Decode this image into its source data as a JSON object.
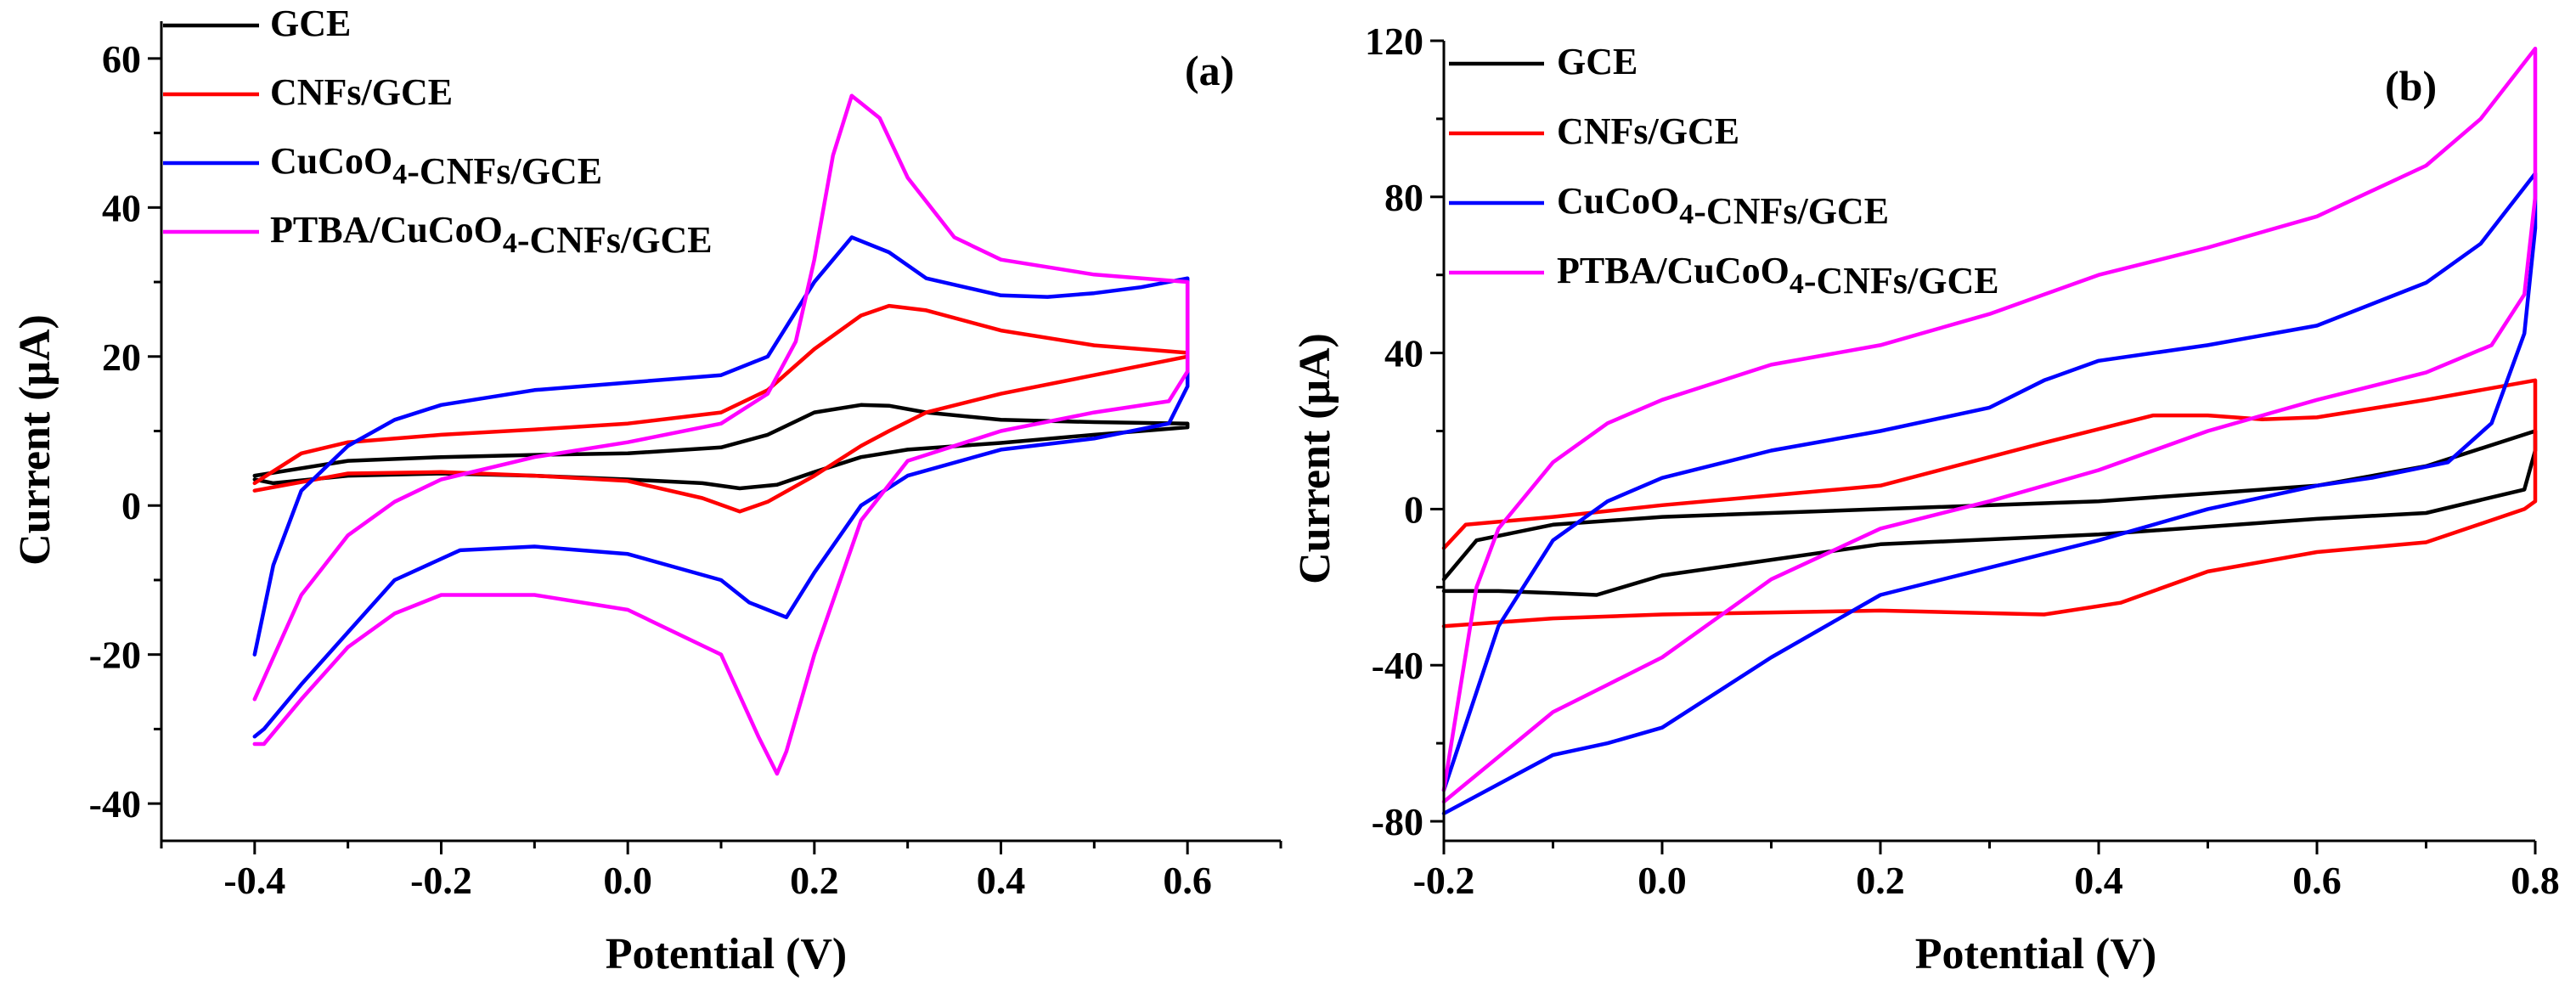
{
  "chart_data": [
    {
      "type": "line",
      "panel_label": "(a)",
      "xlabel": "Potential (V)",
      "ylabel": "Current (μA)",
      "xlim": [
        -0.5,
        0.7
      ],
      "ylim": [
        -45,
        65
      ],
      "xticks": [
        -0.4,
        -0.2,
        0.0,
        0.2,
        0.4,
        0.6
      ],
      "xtick_labels": [
        "-0.4",
        "-0.2",
        "0.0",
        "0.2",
        "0.4",
        "0.6"
      ],
      "yticks": [
        -40,
        -20,
        0,
        20,
        40,
        60
      ],
      "ytick_labels": [
        "-40",
        "-20",
        "0",
        "20",
        "40",
        "60"
      ],
      "grid": false,
      "legend_position": "top-left",
      "series": [
        {
          "name": "GCE",
          "color": "#000000",
          "x": [
            -0.4,
            -0.3,
            -0.2,
            -0.1,
            0.0,
            0.1,
            0.15,
            0.2,
            0.25,
            0.28,
            0.32,
            0.4,
            0.5,
            0.6,
            0.6,
            0.5,
            0.4,
            0.3,
            0.25,
            0.2,
            0.16,
            0.12,
            0.08,
            0.0,
            -0.1,
            -0.2,
            -0.3,
            -0.38,
            -0.4
          ],
          "y": [
            4,
            6,
            6.5,
            6.8,
            7,
            7.8,
            9.5,
            12.5,
            13.5,
            13.4,
            12.5,
            11.5,
            11.2,
            11,
            10.5,
            9.5,
            8.4,
            7.5,
            6.5,
            4.5,
            2.8,
            2.3,
            3.0,
            3.5,
            4.0,
            4.3,
            4.0,
            3.0,
            3.5
          ]
        },
        {
          "name": "CNFs/GCE",
          "color": "#ff0000",
          "x": [
            -0.4,
            -0.35,
            -0.3,
            -0.2,
            -0.1,
            0.0,
            0.1,
            0.15,
            0.2,
            0.25,
            0.28,
            0.32,
            0.4,
            0.5,
            0.6,
            0.6,
            0.5,
            0.4,
            0.32,
            0.28,
            0.25,
            0.2,
            0.15,
            0.12,
            0.08,
            0.0,
            -0.1,
            -0.2,
            -0.3,
            -0.4
          ],
          "y": [
            3,
            7,
            8.5,
            9.5,
            10.2,
            11,
            12.5,
            15.5,
            21,
            25.5,
            26.8,
            26.2,
            23.5,
            21.5,
            20.5,
            20,
            17.5,
            15,
            12.5,
            10,
            8,
            4,
            0.5,
            -0.8,
            1.0,
            3.3,
            4.0,
            4.5,
            4.3,
            2.0
          ]
        },
        {
          "name": "CuCoO4-CNFs/GCE",
          "color": "#0000ff",
          "x": [
            -0.4,
            -0.38,
            -0.35,
            -0.3,
            -0.25,
            -0.2,
            -0.1,
            0.0,
            0.1,
            0.15,
            0.2,
            0.24,
            0.28,
            0.32,
            0.4,
            0.45,
            0.5,
            0.55,
            0.6,
            0.6,
            0.58,
            0.5,
            0.4,
            0.3,
            0.25,
            0.2,
            0.17,
            0.13,
            0.1,
            0.0,
            -0.1,
            -0.18,
            -0.25,
            -0.3,
            -0.35,
            -0.39,
            -0.4
          ],
          "y": [
            -20,
            -8,
            2,
            8,
            11.5,
            13.5,
            15.5,
            16.5,
            17.5,
            20,
            30,
            36,
            34,
            30.5,
            28.2,
            28,
            28.5,
            29.3,
            30.5,
            16,
            11,
            9,
            7.5,
            4,
            0,
            -9,
            -15,
            -13,
            -10,
            -6.5,
            -5.5,
            -6,
            -10,
            -17,
            -24,
            -30,
            -31
          ]
        },
        {
          "name": "PTBA/CuCoO4-CNFs/GCE",
          "color": "#ff00ff",
          "x": [
            -0.4,
            -0.35,
            -0.3,
            -0.25,
            -0.2,
            -0.1,
            0.0,
            0.1,
            0.15,
            0.18,
            0.2,
            0.22,
            0.24,
            0.27,
            0.3,
            0.35,
            0.4,
            0.5,
            0.6,
            0.6,
            0.58,
            0.5,
            0.4,
            0.3,
            0.25,
            0.2,
            0.17,
            0.16,
            0.14,
            0.1,
            0.0,
            -0.1,
            -0.2,
            -0.25,
            -0.3,
            -0.35,
            -0.39,
            -0.4
          ],
          "y": [
            -26,
            -12,
            -4,
            0.5,
            3.5,
            6.5,
            8.5,
            11,
            15,
            22,
            33,
            47,
            55,
            52,
            44,
            36,
            33,
            31,
            30,
            18,
            14,
            12.5,
            10,
            6,
            -2,
            -20,
            -33,
            -36,
            -31,
            -20,
            -14,
            -12,
            -12,
            -14.5,
            -19,
            -26,
            -32,
            -32
          ]
        }
      ]
    },
    {
      "type": "line",
      "panel_label": "(b)",
      "xlabel": "Potential (V)",
      "ylabel": "Current (μA)",
      "xlim": [
        -0.2,
        0.8
      ],
      "ylim": [
        -85,
        120
      ],
      "xticks": [
        -0.2,
        0.0,
        0.2,
        0.4,
        0.6,
        0.8
      ],
      "xtick_labels": [
        "-0.2",
        "0.0",
        "0.2",
        "0.4",
        "0.6",
        "0.8"
      ],
      "yticks": [
        -80,
        -40,
        0,
        40,
        80,
        120
      ],
      "ytick_labels": [
        "-80",
        "-40",
        "0",
        "40",
        "80",
        "120"
      ],
      "grid": false,
      "legend_position": "top-left",
      "series": [
        {
          "name": "GCE",
          "color": "#000000",
          "x": [
            -0.2,
            -0.17,
            -0.1,
            0.0,
            0.2,
            0.4,
            0.6,
            0.7,
            0.8,
            0.8,
            0.79,
            0.7,
            0.6,
            0.4,
            0.2,
            0.0,
            -0.06,
            -0.1,
            -0.15,
            -0.2
          ],
          "y": [
            -18,
            -8,
            -4,
            -2,
            0,
            2,
            6,
            11,
            20,
            15,
            5,
            -1,
            -2.5,
            -6.5,
            -9,
            -17,
            -22,
            -21.5,
            -21,
            -21
          ]
        },
        {
          "name": "CNFs/GCE",
          "color": "#ff0000",
          "x": [
            -0.2,
            -0.18,
            -0.1,
            0.0,
            0.2,
            0.35,
            0.45,
            0.5,
            0.55,
            0.6,
            0.7,
            0.8,
            0.8,
            0.79,
            0.7,
            0.6,
            0.5,
            0.42,
            0.35,
            0.2,
            0.0,
            -0.1,
            -0.2
          ],
          "y": [
            -10,
            -4,
            -2,
            1,
            6,
            17,
            24,
            24,
            23,
            23.5,
            28,
            33,
            2,
            0,
            -8.5,
            -11,
            -16,
            -24,
            -27,
            -26,
            -27,
            -28,
            -30
          ]
        },
        {
          "name": "CuCoO4-CNFs/GCE",
          "color": "#0000ff",
          "x": [
            -0.2,
            -0.15,
            -0.1,
            -0.05,
            0.0,
            0.1,
            0.2,
            0.3,
            0.35,
            0.4,
            0.5,
            0.6,
            0.7,
            0.75,
            0.8,
            0.8,
            0.79,
            0.76,
            0.72,
            0.65,
            0.6,
            0.5,
            0.4,
            0.3,
            0.2,
            0.1,
            0.0,
            -0.05,
            -0.1,
            -0.2
          ],
          "y": [
            -72,
            -30,
            -8,
            2,
            8,
            15,
            20,
            26,
            33,
            38,
            42,
            47,
            58,
            68,
            86,
            72,
            45,
            22,
            12,
            8,
            6,
            0,
            -8,
            -15,
            -22,
            -38,
            -56,
            -60,
            -63,
            -78
          ]
        },
        {
          "name": "PTBA/CuCoO4-CNFs/GCE",
          "color": "#ff00ff",
          "x": [
            -0.2,
            -0.17,
            -0.15,
            -0.1,
            -0.05,
            0.0,
            0.1,
            0.2,
            0.3,
            0.4,
            0.5,
            0.6,
            0.7,
            0.75,
            0.8,
            0.8,
            0.79,
            0.76,
            0.7,
            0.6,
            0.5,
            0.4,
            0.3,
            0.2,
            0.1,
            0.0,
            -0.05,
            -0.1,
            -0.2
          ],
          "y": [
            -72,
            -20,
            -5,
            12,
            22,
            28,
            37,
            42,
            50,
            60,
            67,
            75,
            88,
            100,
            118,
            80,
            55,
            42,
            35,
            28,
            20,
            10,
            2,
            -5,
            -18,
            -38,
            -45,
            -52,
            -75
          ]
        }
      ]
    }
  ]
}
